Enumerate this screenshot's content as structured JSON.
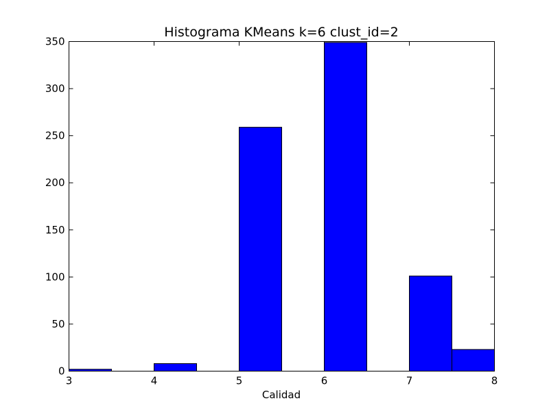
{
  "chart_data": {
    "type": "bar",
    "title": "Histograma KMeans k=6 clust_id=2",
    "xlabel": "Calidad",
    "ylabel": "",
    "bin_edges": [
      3.0,
      3.5,
      4.0,
      4.5,
      5.0,
      5.5,
      6.0,
      6.5,
      7.0,
      7.5,
      8.0
    ],
    "values": [
      2,
      0,
      8,
      0,
      259,
      0,
      349,
      0,
      101,
      23
    ],
    "xlim": [
      3,
      8
    ],
    "ylim": [
      0,
      350
    ],
    "xticks": [
      "3",
      "4",
      "5",
      "6",
      "7",
      "8"
    ],
    "yticks": [
      "0",
      "50",
      "100",
      "150",
      "200",
      "250",
      "300",
      "350"
    ],
    "grid": false,
    "bar_color": "#0000ff",
    "edge_color": "#000000"
  }
}
